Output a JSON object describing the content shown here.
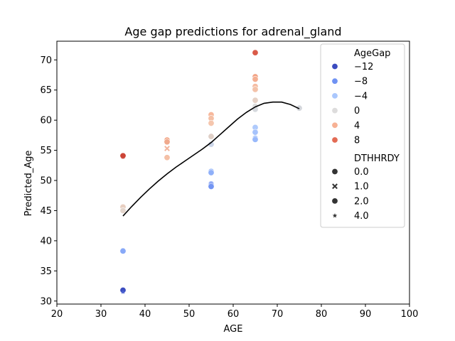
{
  "chart_data": {
    "type": "scatter",
    "title": "Age gap predictions for adrenal_gland",
    "xlabel": "AGE",
    "ylabel": "Predicted_Age",
    "xlim": [
      20,
      100
    ],
    "ylim": [
      29.5,
      73.1
    ],
    "xticks": [
      20,
      30,
      40,
      50,
      60,
      70,
      80,
      90,
      100
    ],
    "yticks": [
      30,
      35,
      40,
      45,
      50,
      55,
      60,
      65,
      70
    ],
    "grid": false,
    "legend_position": "top-right",
    "hue_title": "AgeGap",
    "hue_entries": [
      {
        "label": "−12",
        "color": "#3b4cc0"
      },
      {
        "label": "−8",
        "color": "#6f92f3"
      },
      {
        "label": "−4",
        "color": "#aac7fd"
      },
      {
        "label": "0",
        "color": "#dddcdc"
      },
      {
        "label": "4",
        "color": "#f7b194"
      },
      {
        "label": "8",
        "color": "#e36b54"
      }
    ],
    "style_title": "DTHHRDY",
    "style_entries": [
      {
        "label": "0.0",
        "marker": "circle"
      },
      {
        "label": "1.0",
        "marker": "x"
      },
      {
        "label": "2.0",
        "marker": "circle"
      },
      {
        "label": "4.0",
        "marker": "star"
      }
    ],
    "points": [
      {
        "x": 35,
        "y": 54.0,
        "color": "#c63b33",
        "marker": "circle"
      },
      {
        "x": 35,
        "y": 54.1,
        "color": "#cc4436",
        "marker": "circle"
      },
      {
        "x": 35,
        "y": 45.6,
        "color": "#e8cfc1",
        "marker": "circle"
      },
      {
        "x": 35,
        "y": 45.0,
        "color": "#e4d6cd",
        "marker": "circle"
      },
      {
        "x": 35,
        "y": 38.3,
        "color": "#88a9f8",
        "marker": "circle"
      },
      {
        "x": 35,
        "y": 31.8,
        "color": "#3b4cc0",
        "marker": "circle"
      },
      {
        "x": 35,
        "y": 31.5,
        "color": "#4a60d0",
        "marker": "star"
      },
      {
        "x": 45,
        "y": 56.7,
        "color": "#f2a585",
        "marker": "circle"
      },
      {
        "x": 45,
        "y": 56.4,
        "color": "#f0a98c",
        "marker": "circle"
      },
      {
        "x": 45,
        "y": 55.3,
        "color": "#f2b49c",
        "marker": "x"
      },
      {
        "x": 45,
        "y": 53.8,
        "color": "#f4c0a6",
        "marker": "circle"
      },
      {
        "x": 55,
        "y": 60.9,
        "color": "#f7b89c",
        "marker": "circle"
      },
      {
        "x": 55,
        "y": 60.3,
        "color": "#f4bfa4",
        "marker": "circle"
      },
      {
        "x": 55,
        "y": 59.5,
        "color": "#f5c6ad",
        "marker": "circle"
      },
      {
        "x": 55,
        "y": 57.3,
        "color": "#dfcfc6",
        "marker": "circle"
      },
      {
        "x": 55,
        "y": 56.0,
        "color": "#cbd5e8",
        "marker": "circle"
      },
      {
        "x": 55,
        "y": 51.5,
        "color": "#93b4fa",
        "marker": "circle"
      },
      {
        "x": 55,
        "y": 51.3,
        "color": "#8fb0f9",
        "marker": "circle"
      },
      {
        "x": 55,
        "y": 49.4,
        "color": "#6e90f2",
        "marker": "circle"
      },
      {
        "x": 55,
        "y": 49.2,
        "color": "#6a8cf0",
        "marker": "circle"
      },
      {
        "x": 55,
        "y": 49.0,
        "color": "#7395f3",
        "marker": "circle"
      },
      {
        "x": 65,
        "y": 71.2,
        "color": "#d95a48",
        "marker": "circle"
      },
      {
        "x": 65,
        "y": 67.2,
        "color": "#f2a283",
        "marker": "circle"
      },
      {
        "x": 65,
        "y": 66.8,
        "color": "#f4ae91",
        "marker": "circle"
      },
      {
        "x": 65,
        "y": 65.6,
        "color": "#f5bca2",
        "marker": "circle"
      },
      {
        "x": 65,
        "y": 65.1,
        "color": "#f3c2a9",
        "marker": "circle"
      },
      {
        "x": 65,
        "y": 63.3,
        "color": "#e6d1c5",
        "marker": "circle"
      },
      {
        "x": 65,
        "y": 62.3,
        "color": "#dcdcdc",
        "marker": "circle"
      },
      {
        "x": 65,
        "y": 61.8,
        "color": "#d6d9de",
        "marker": "circle"
      },
      {
        "x": 65,
        "y": 58.8,
        "color": "#afcafc",
        "marker": "circle"
      },
      {
        "x": 65,
        "y": 58.0,
        "color": "#a6c3fc",
        "marker": "circle"
      },
      {
        "x": 65,
        "y": 57.0,
        "color": "#9dbdfb",
        "marker": "circle"
      },
      {
        "x": 65,
        "y": 56.8,
        "color": "#99b9fb",
        "marker": "circle"
      },
      {
        "x": 75,
        "y": 62.0,
        "color": "#d3d6db",
        "marker": "circle"
      }
    ],
    "trend_line": {
      "color": "#000000",
      "points": [
        [
          35,
          44.1
        ],
        [
          37,
          45.7
        ],
        [
          39,
          47.2
        ],
        [
          41,
          48.6
        ],
        [
          43,
          49.9
        ],
        [
          45,
          51.1
        ],
        [
          47,
          52.2
        ],
        [
          49,
          53.2
        ],
        [
          51,
          54.2
        ],
        [
          53,
          55.2
        ],
        [
          55,
          56.3
        ],
        [
          57,
          57.6
        ],
        [
          59,
          58.9
        ],
        [
          61,
          60.2
        ],
        [
          63,
          61.3
        ],
        [
          65,
          62.2
        ],
        [
          67,
          62.8
        ],
        [
          69,
          63.0
        ],
        [
          71,
          63.0
        ],
        [
          73,
          62.6
        ],
        [
          75,
          61.9
        ]
      ]
    }
  }
}
